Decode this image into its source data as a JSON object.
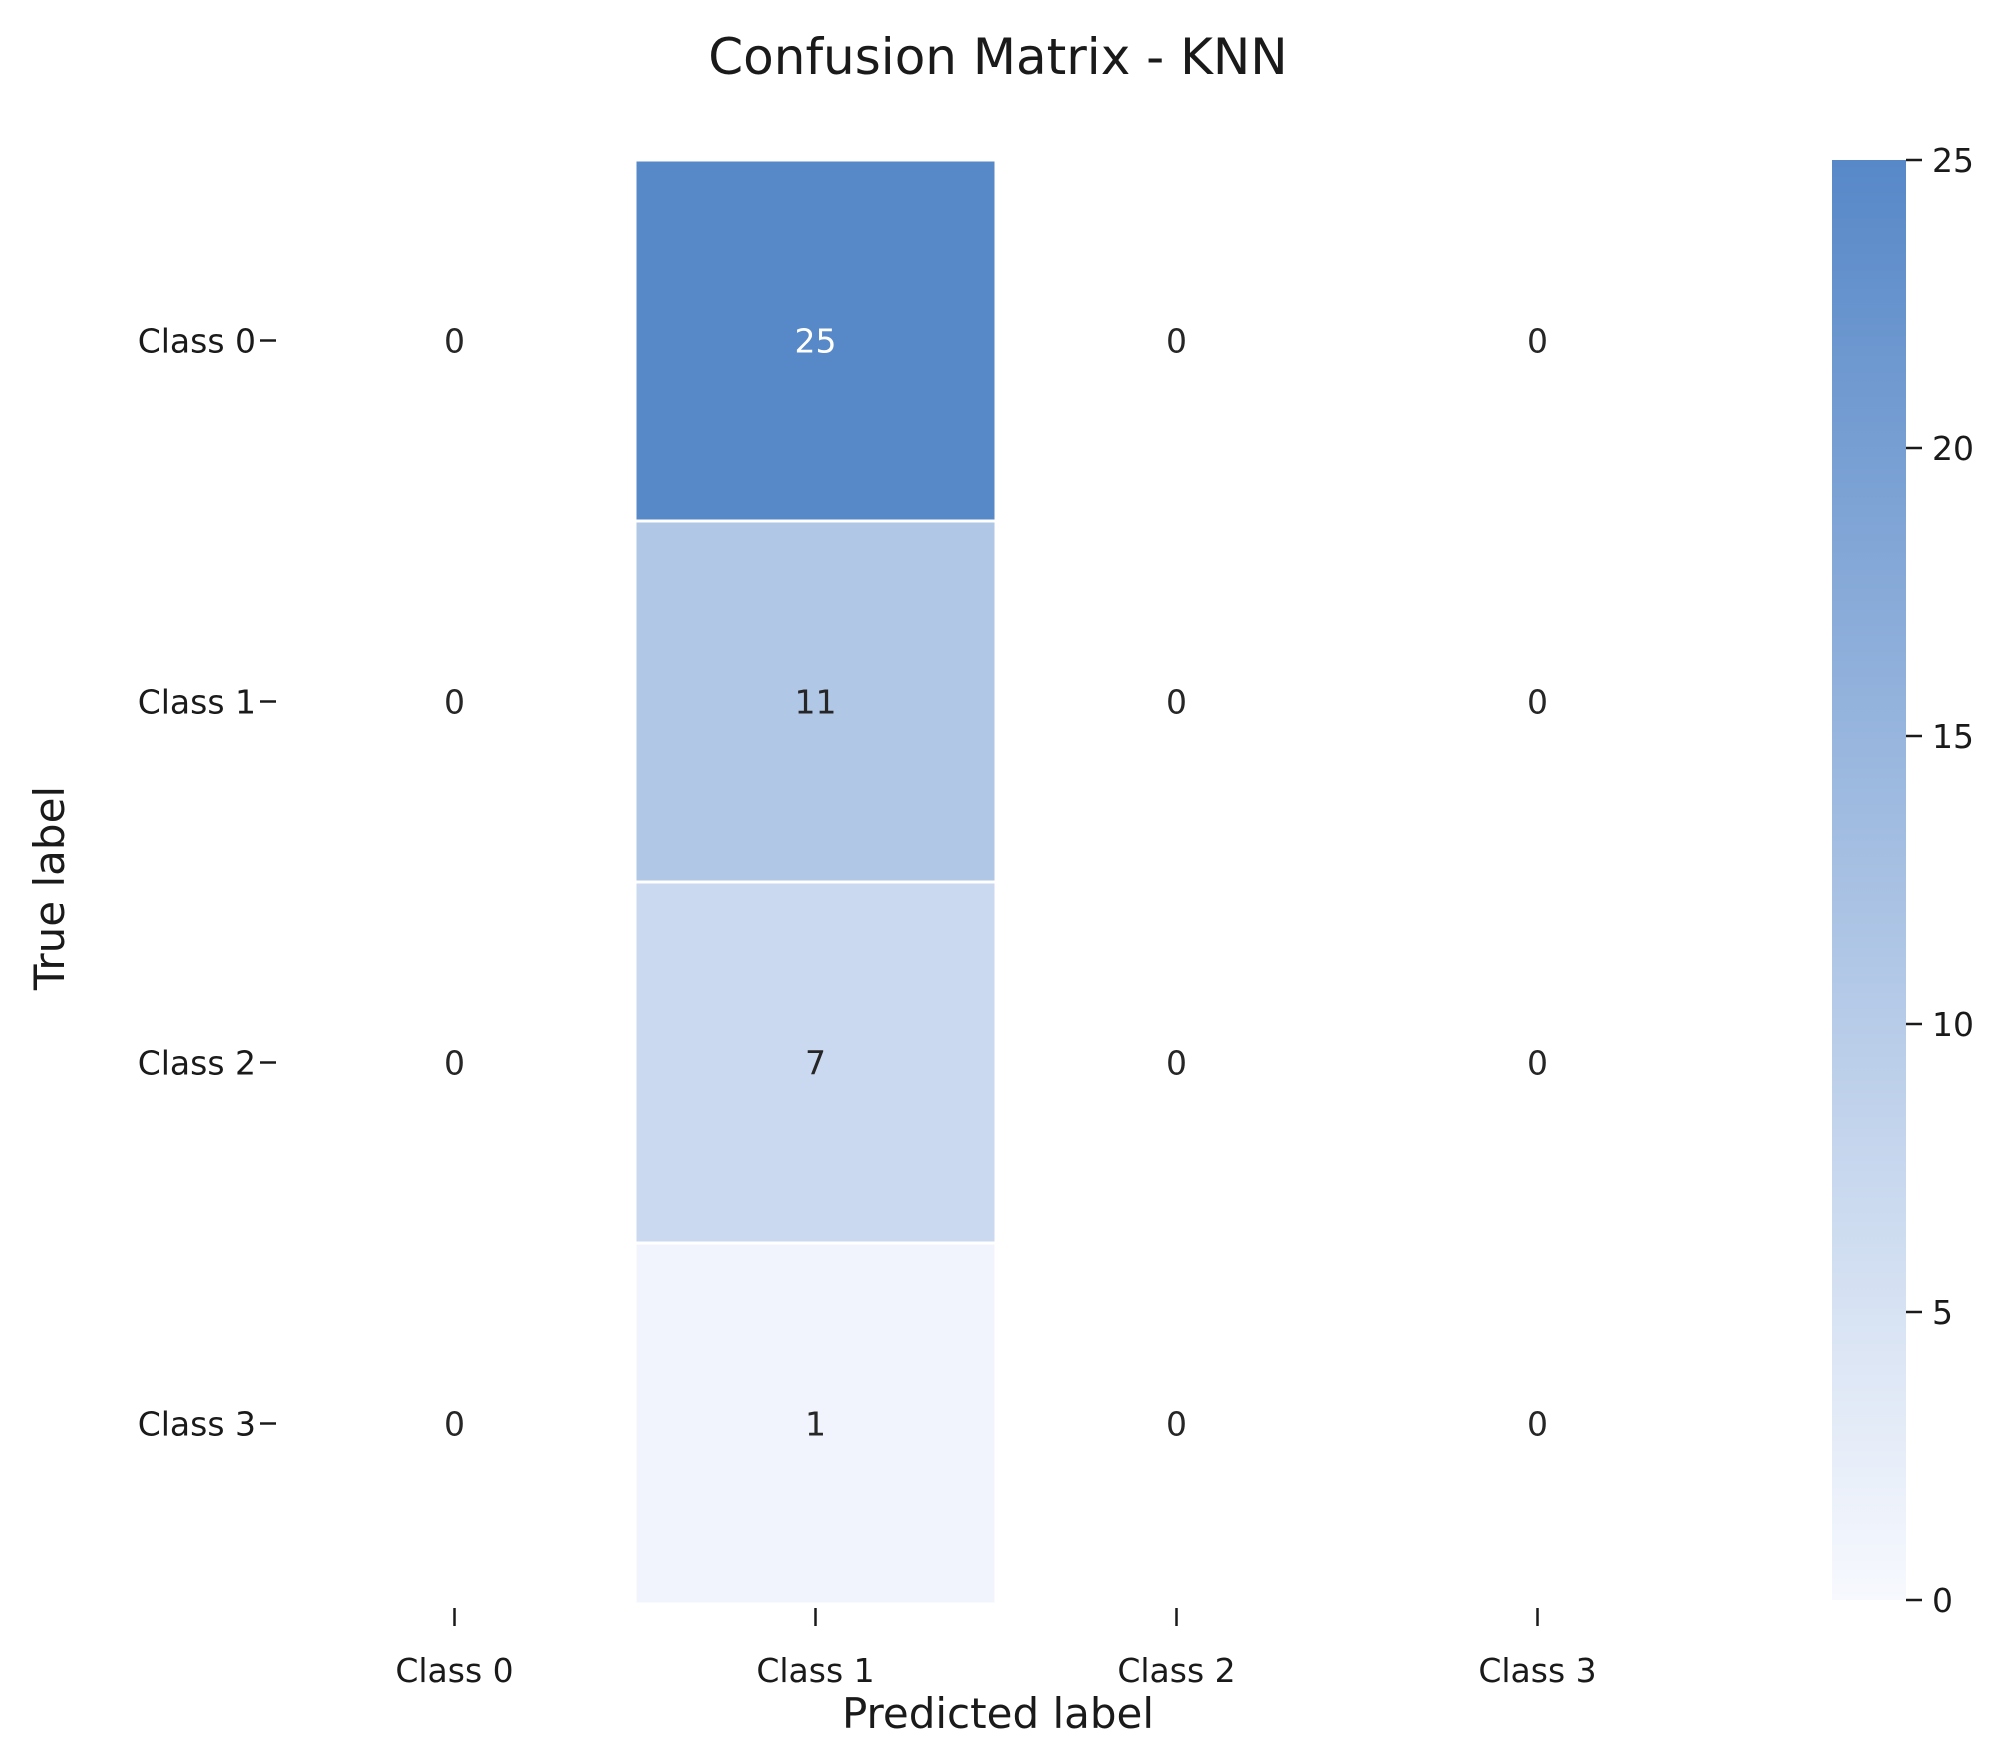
{
  "chart_data": {
    "type": "heatmap",
    "title": "Confusion Matrix - KNN",
    "xlabel": "Predicted label",
    "ylabel": "True label",
    "x_categories": [
      "Class 0",
      "Class 1",
      "Class 2",
      "Class 3"
    ],
    "y_categories": [
      "Class 0",
      "Class 1",
      "Class 2",
      "Class 3"
    ],
    "values": [
      [
        0,
        25,
        0,
        0
      ],
      [
        0,
        11,
        0,
        0
      ],
      [
        0,
        7,
        0,
        0
      ],
      [
        0,
        1,
        0,
        0
      ]
    ],
    "colorbar": {
      "range": [
        0,
        25
      ],
      "ticks": [
        "0",
        "5",
        "10",
        "15",
        "20",
        "25"
      ]
    },
    "colors": {
      "low": "#f7f9fe",
      "high": "#5788c8",
      "text_dark": "#262626",
      "text_light": "#ffffff"
    }
  }
}
